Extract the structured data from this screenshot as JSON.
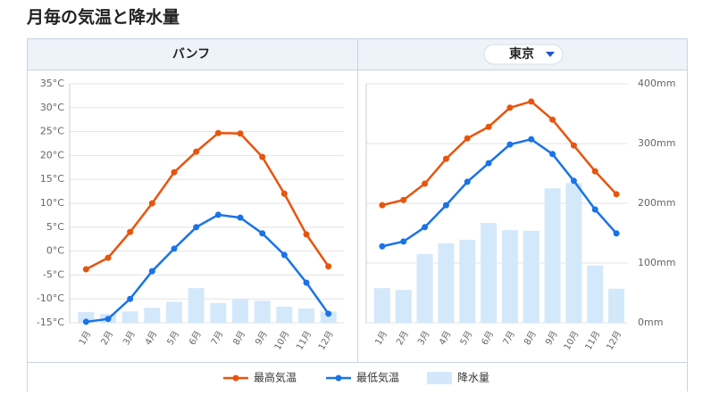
{
  "page_title": "月毎の気温と降水量",
  "chart_data": [
    {
      "type": "line-bar",
      "title": "バンフ",
      "categories": [
        "1月",
        "2月",
        "3月",
        "4月",
        "5月",
        "6月",
        "7月",
        "8月",
        "9月",
        "10月",
        "11月",
        "12月"
      ],
      "series": [
        {
          "name": "最高気温",
          "kind": "line",
          "color": "#e8540c",
          "values": [
            -3.8,
            -1.4,
            4.0,
            10.0,
            16.5,
            20.8,
            24.7,
            24.6,
            19.7,
            12.0,
            3.5,
            -3.2
          ]
        },
        {
          "name": "最低気温",
          "kind": "line",
          "color": "#1a73e8",
          "values": [
            -14.8,
            -14.2,
            -10.0,
            -4.2,
            0.5,
            5.0,
            7.6,
            7.0,
            3.7,
            -0.8,
            -6.6,
            -13.1
          ]
        },
        {
          "name": "降水量",
          "kind": "bar",
          "axis": "y2",
          "color": "#d3e8fb",
          "values": [
            18,
            15,
            19,
            25,
            35,
            58,
            33,
            39,
            37,
            27,
            24,
            19
          ]
        }
      ],
      "ylim": [
        -15,
        35
      ],
      "yticks": [
        {
          "value": -15,
          "label": "-15°C"
        },
        {
          "value": -10,
          "label": "-10°C"
        },
        {
          "value": -5,
          "label": "-5°C"
        },
        {
          "value": 0,
          "label": "0°C"
        },
        {
          "value": 5,
          "label": "5°C"
        },
        {
          "value": 10,
          "label": "10°C"
        },
        {
          "value": 15,
          "label": "15°C"
        },
        {
          "value": 20,
          "label": "20°C"
        },
        {
          "value": 25,
          "label": "25°C"
        },
        {
          "value": 30,
          "label": "30°C"
        },
        {
          "value": 35,
          "label": "35°C"
        }
      ],
      "y2lim": [
        0,
        400
      ],
      "grid": true
    },
    {
      "type": "line-bar",
      "title": "東京",
      "categories": [
        "1月",
        "2月",
        "3月",
        "4月",
        "5月",
        "6月",
        "7月",
        "8月",
        "9月",
        "10月",
        "11月",
        "12月"
      ],
      "series": [
        {
          "name": "最高気温",
          "kind": "line",
          "color": "#e8540c",
          "values": [
            9.6,
            10.7,
            14.1,
            19.3,
            23.6,
            26.0,
            30.0,
            31.3,
            27.5,
            22.1,
            16.7,
            11.9
          ]
        },
        {
          "name": "最低気温",
          "kind": "line",
          "color": "#1a73e8",
          "values": [
            1.0,
            2.0,
            5.0,
            9.6,
            14.5,
            18.4,
            22.3,
            23.4,
            20.3,
            14.7,
            8.7,
            3.7
          ]
        },
        {
          "name": "降水量",
          "kind": "bar",
          "axis": "y2",
          "color": "#d3e8fb",
          "values": [
            58,
            55,
            115,
            133,
            139,
            167,
            155,
            154,
            225,
            234,
            96,
            57
          ]
        }
      ],
      "ylim": [
        -15,
        35
      ],
      "y2lim": [
        0,
        400
      ],
      "y2ticks": [
        {
          "value": 0,
          "label": "0mm"
        },
        {
          "value": 100,
          "label": "100mm"
        },
        {
          "value": 200,
          "label": "200mm"
        },
        {
          "value": 300,
          "label": "300mm"
        },
        {
          "value": 400,
          "label": "400mm"
        }
      ],
      "grid": true
    }
  ]
}
